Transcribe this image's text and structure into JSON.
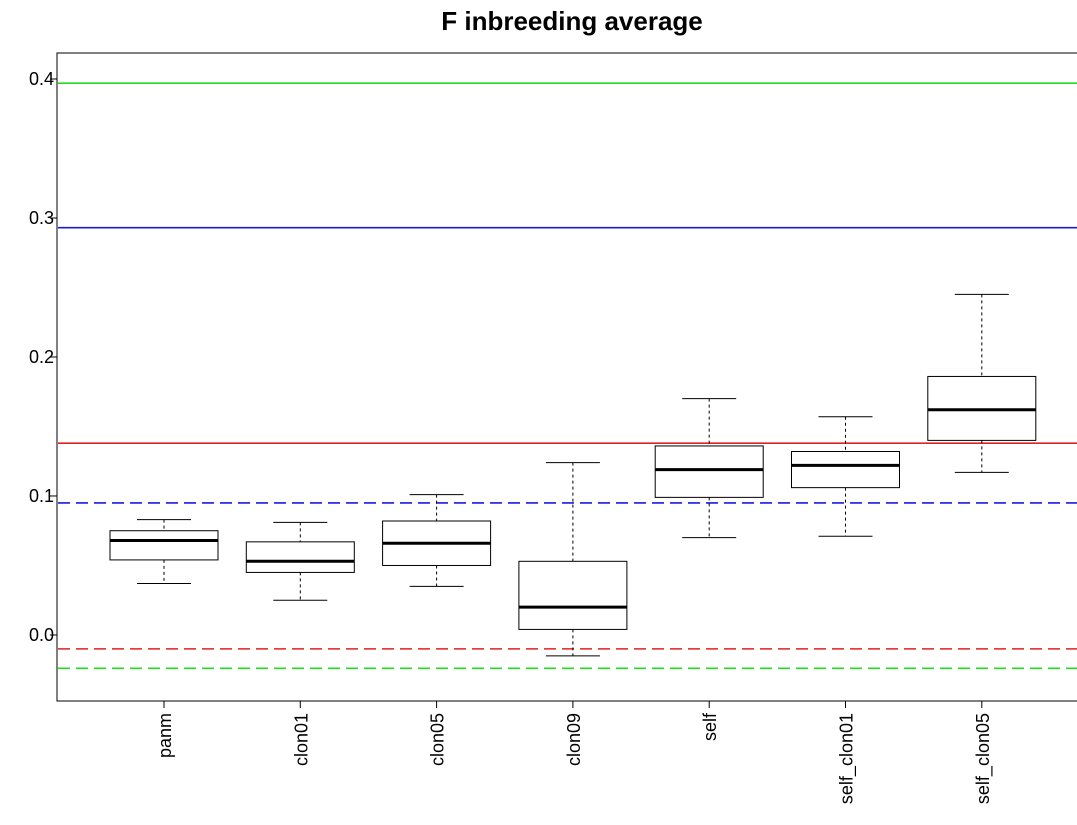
{
  "chart_data": {
    "type": "boxplot",
    "title": "F inbreeding average",
    "categories": [
      "panm",
      "clon01",
      "clon05",
      "clon09",
      "self",
      "self_clon01",
      "self_clon05"
    ],
    "boxes": [
      {
        "whisker_low": 0.037,
        "q1": 0.054,
        "median": 0.068,
        "q3": 0.075,
        "whisker_high": 0.083
      },
      {
        "whisker_low": 0.025,
        "q1": 0.045,
        "median": 0.053,
        "q3": 0.067,
        "whisker_high": 0.081
      },
      {
        "whisker_low": 0.035,
        "q1": 0.05,
        "median": 0.066,
        "q3": 0.082,
        "whisker_high": 0.101
      },
      {
        "whisker_low": -0.015,
        "q1": 0.004,
        "median": 0.02,
        "q3": 0.053,
        "whisker_high": 0.124
      },
      {
        "whisker_low": 0.07,
        "q1": 0.099,
        "median": 0.119,
        "q3": 0.136,
        "whisker_high": 0.17
      },
      {
        "whisker_low": 0.071,
        "q1": 0.106,
        "median": 0.122,
        "q3": 0.132,
        "whisker_high": 0.157
      },
      {
        "whisker_low": 0.117,
        "q1": 0.14,
        "median": 0.162,
        "q3": 0.186,
        "whisker_high": 0.245
      }
    ],
    "hlines": [
      {
        "value": 0.397,
        "color": "#22dd22",
        "style": "solid"
      },
      {
        "value": 0.293,
        "color": "#1a1adf",
        "style": "solid"
      },
      {
        "value": 0.138,
        "color": "#df2222",
        "style": "solid"
      },
      {
        "value": 0.095,
        "color": "#1a1adf",
        "style": "dashed"
      },
      {
        "value": -0.01,
        "color": "#df2222",
        "style": "dashed"
      },
      {
        "value": -0.024,
        "color": "#22dd22",
        "style": "dashed"
      }
    ],
    "ylim": [
      -0.0475,
      0.4187
    ],
    "yticks": [
      {
        "value": 0,
        "label": "0.0"
      },
      0.1,
      0.2,
      0.3,
      0.4
    ]
  }
}
